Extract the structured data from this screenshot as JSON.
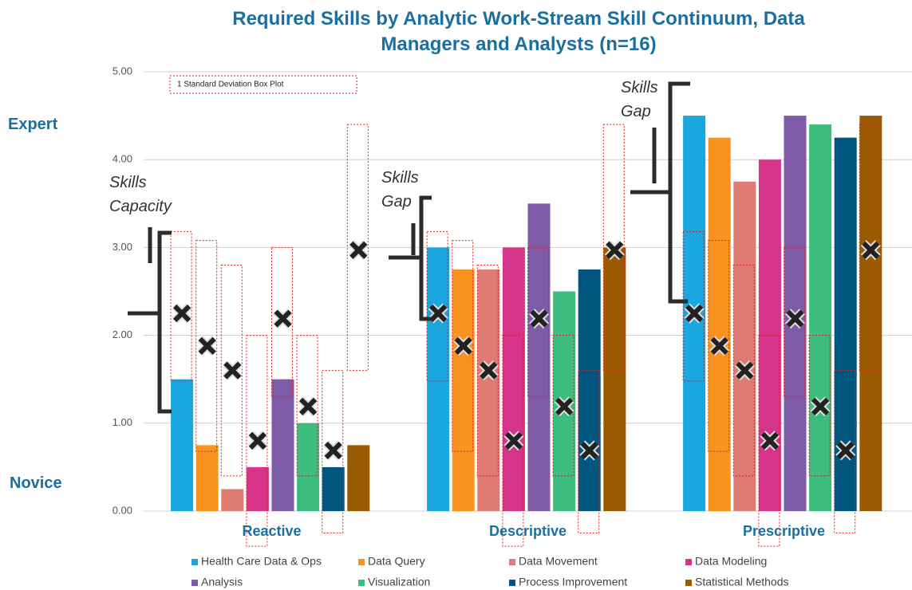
{
  "chart_data": {
    "type": "bar",
    "title": "Required Skills by Analytic Work-Stream Skill Continuum, Data Managers and Analysts (n=16)",
    "categories": [
      "Reactive",
      "Descriptive",
      "Prescriptive"
    ],
    "ylim": [
      0,
      5
    ],
    "yticks": [
      {
        "value": 0,
        "label": "0.00"
      },
      {
        "value": 1,
        "label": "1.00"
      },
      {
        "value": 2,
        "label": "2.00"
      },
      {
        "value": 3,
        "label": "3.00"
      },
      {
        "value": 4,
        "label": "4.00"
      },
      {
        "value": 5,
        "label": "5.00"
      }
    ],
    "grid": true,
    "legend": "bottom",
    "box_plot_label": "1 Standard Deviation Box Plot",
    "annotations": {
      "expert": "Expert",
      "novice": "Novice",
      "capacity": "Skills Capacity",
      "gap_descriptive": "Skills Gap",
      "gap_prescriptive": "Skills Gap"
    },
    "series": [
      {
        "name": "Health Care Data & Ops",
        "color": "#1aa7e0",
        "values": [
          1.5,
          3.0,
          4.5
        ],
        "mean": 2.25,
        "sd_low": 1.48,
        "sd_high": 3.18
      },
      {
        "name": "Data Query",
        "color": "#f7931e",
        "values": [
          0.75,
          2.75,
          4.25
        ],
        "mean": 1.88,
        "sd_low": 0.68,
        "sd_high": 3.08
      },
      {
        "name": "Data Movement",
        "color": "#e07b74",
        "values": [
          0.25,
          2.75,
          3.75
        ],
        "mean": 1.6,
        "sd_low": 0.4,
        "sd_high": 2.8
      },
      {
        "name": "Data Modeling",
        "color": "#d6338a",
        "values": [
          0.5,
          3.0,
          4.0
        ],
        "mean": 0.8,
        "sd_low": -0.4,
        "sd_high": 2.0
      },
      {
        "name": "Analysis",
        "color": "#7d5ba6",
        "values": [
          1.5,
          3.5,
          4.5
        ],
        "mean": 2.19,
        "sd_low": 1.3,
        "sd_high": 3.0
      },
      {
        "name": "Visualization",
        "color": "#3dbd7d",
        "values": [
          1.0,
          2.5,
          4.4
        ],
        "mean": 1.19,
        "sd_low": 0.4,
        "sd_high": 2.0
      },
      {
        "name": "Process Improvement",
        "color": "#00567f",
        "values": [
          0.5,
          2.75,
          4.25
        ],
        "mean": 0.69,
        "sd_low": -0.25,
        "sd_high": 1.6
      },
      {
        "name": "Statistical Methods",
        "color": "#9c5a00",
        "values": [
          0.75,
          3.0,
          4.5
        ],
        "mean": 2.97,
        "sd_low": 1.6,
        "sd_high": 4.4
      }
    ]
  }
}
